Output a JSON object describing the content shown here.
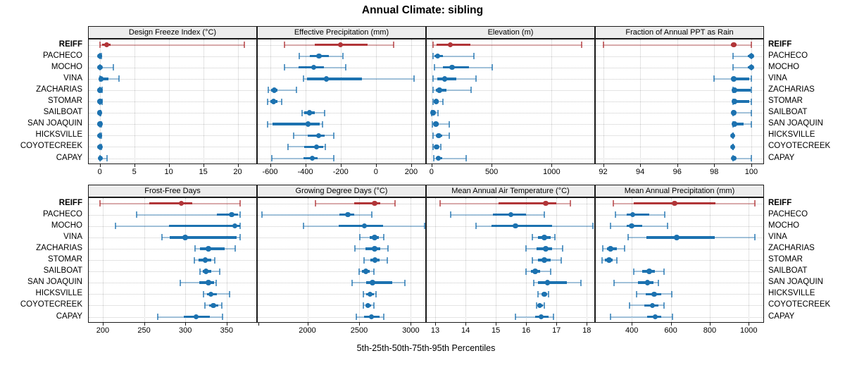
{
  "title": "Annual Climate: sibling",
  "footer": "5th-25th-50th-75th-95th Percentiles",
  "colors": {
    "highlight": "#b13538",
    "normal": "#1c72b0",
    "strip_bg": "#ededed",
    "grid": "#c9c9c9",
    "panel_border": "#1a1a1a"
  },
  "sites": [
    "REIFF",
    "PACHECO",
    "MOCHO",
    "VINA",
    "ZACHARIAS",
    "STOMAR",
    "SAILBOAT",
    "SAN JOAQUIN",
    "HICKSVILLE",
    "COYOTECREEK",
    "CAPAY"
  ],
  "highlight_site": "REIFF",
  "chart_data": [
    {
      "type": "dotplot-percentile",
      "title": "Design Freeze Index (°C)",
      "row": "top",
      "col": 0,
      "xdomain": [
        -1.6,
        22.7
      ],
      "ticks": [
        {
          "v": 0,
          "label": "0"
        },
        {
          "v": 5,
          "label": "5"
        },
        {
          "v": 10,
          "label": "10"
        },
        {
          "v": 15,
          "label": "15"
        },
        {
          "v": 20,
          "label": "20"
        }
      ],
      "percentiles_5_25_50_75_95": [
        [
          0,
          0.35,
          1.0,
          1.6,
          21.0
        ],
        [
          0,
          0,
          0,
          0.05,
          0.2
        ],
        [
          0,
          0,
          0.05,
          0.3,
          2.0
        ],
        [
          0,
          0.05,
          0.2,
          1.3,
          2.8
        ],
        [
          0,
          0,
          0.05,
          0.15,
          0.35
        ],
        [
          0,
          0,
          0.05,
          0.15,
          0.35
        ],
        [
          0,
          0,
          0,
          0.05,
          0.15
        ],
        [
          0,
          0,
          0.05,
          0.1,
          0.25
        ],
        [
          0,
          0,
          0,
          0.05,
          0.2
        ],
        [
          0,
          0,
          0.05,
          0.1,
          0.25
        ],
        [
          0,
          0,
          0.1,
          0.3,
          1.1
        ]
      ]
    },
    {
      "type": "dotplot-percentile",
      "title": "Effective Precipitation (mm)",
      "row": "top",
      "col": 1,
      "xdomain": [
        -670,
        280
      ],
      "ticks": [
        {
          "v": -600,
          "label": "-600"
        },
        {
          "v": -400,
          "label": "-400"
        },
        {
          "v": -200,
          "label": "-200"
        },
        {
          "v": 0,
          "label": "0"
        },
        {
          "v": 200,
          "label": "200"
        }
      ],
      "percentiles_5_25_50_75_95": [
        [
          -520,
          -347,
          -200,
          -47,
          100
        ],
        [
          -433,
          -373,
          -323,
          -267,
          -189
        ],
        [
          -520,
          -440,
          -353,
          -293,
          -173
        ],
        [
          -410,
          -392,
          -280,
          -80,
          215
        ],
        [
          -609,
          -595,
          -577,
          -558,
          -449
        ],
        [
          -613,
          -597,
          -580,
          -558,
          -533
        ],
        [
          -420,
          -408,
          -376,
          -348,
          -292
        ],
        [
          -615,
          -588,
          -385,
          -318,
          -302
        ],
        [
          -468,
          -388,
          -324,
          -290,
          -237
        ],
        [
          -500,
          -405,
          -336,
          -298,
          -288
        ],
        [
          -590,
          -410,
          -360,
          -332,
          -240
        ]
      ]
    },
    {
      "type": "dotplot-percentile",
      "title": "Elevation (m)",
      "row": "top",
      "col": 2,
      "xdomain": [
        -40,
        1355
      ],
      "ticks": [
        {
          "v": 0,
          "label": "0"
        },
        {
          "v": 500,
          "label": "500"
        },
        {
          "v": 1000,
          "label": "1000"
        }
      ],
      "percentiles_5_25_50_75_95": [
        [
          10,
          40,
          155,
          325,
          1250
        ],
        [
          10,
          25,
          50,
          95,
          350
        ],
        [
          25,
          95,
          170,
          310,
          505
        ],
        [
          15,
          45,
          110,
          205,
          370
        ],
        [
          15,
          35,
          65,
          125,
          330
        ],
        [
          10,
          20,
          40,
          60,
          95
        ],
        [
          2,
          5,
          12,
          25,
          55
        ],
        [
          8,
          18,
          35,
          60,
          150
        ],
        [
          15,
          35,
          60,
          90,
          145
        ],
        [
          15,
          25,
          42,
          58,
          78
        ],
        [
          20,
          38,
          58,
          90,
          290
        ]
      ]
    },
    {
      "type": "dotplot-percentile",
      "title": "Fraction of Annual PPT as Rain",
      "row": "top",
      "col": 3,
      "xdomain": [
        91.6,
        100.65
      ],
      "ticks": [
        {
          "v": 92,
          "label": "92"
        },
        {
          "v": 94,
          "label": "94"
        },
        {
          "v": 96,
          "label": "96"
        },
        {
          "v": 98,
          "label": "98"
        },
        {
          "v": 100,
          "label": "100"
        }
      ],
      "percentiles_5_25_50_75_95": [
        [
          92,
          98.9,
          99.05,
          99.2,
          100
        ],
        [
          99,
          99.8,
          100,
          100,
          100
        ],
        [
          99,
          99.8,
          100,
          100,
          100
        ],
        [
          98,
          98.95,
          99.05,
          99.9,
          100
        ],
        [
          99,
          99.05,
          99.1,
          99.95,
          100
        ],
        [
          99,
          99.05,
          99.1,
          99.9,
          100
        ],
        [
          99,
          99,
          99.05,
          99.15,
          100
        ],
        [
          99,
          99.05,
          99.1,
          99.6,
          100
        ],
        [
          99,
          99,
          99,
          99,
          99
        ],
        [
          99,
          99,
          99,
          99,
          99
        ],
        [
          99,
          99,
          99.05,
          99.15,
          100
        ]
      ]
    },
    {
      "type": "dotplot-percentile",
      "title": "Frost-Free Days",
      "row": "bottom",
      "col": 0,
      "xdomain": [
        183,
        386
      ],
      "ticks": [
        {
          "v": 200,
          "label": "200"
        },
        {
          "v": 250,
          "label": "250"
        },
        {
          "v": 300,
          "label": "300"
        },
        {
          "v": 350,
          "label": "350"
        }
      ],
      "percentiles_5_25_50_75_95": [
        [
          197,
          256,
          295,
          308,
          366
        ],
        [
          241,
          338,
          356,
          364,
          366
        ],
        [
          215,
          280,
          360,
          366,
          366
        ],
        [
          272,
          281,
          300,
          362,
          366
        ],
        [
          312,
          318,
          328,
          348,
          360
        ],
        [
          311,
          316,
          324,
          331,
          336
        ],
        [
          318,
          321,
          325,
          331,
          342
        ],
        [
          294,
          317,
          328,
          335,
          337
        ],
        [
          322,
          326,
          331,
          338,
          354
        ],
        [
          324,
          329,
          334,
          340,
          344
        ],
        [
          267,
          298,
          313,
          330,
          345
        ]
      ]
    },
    {
      "type": "dotplot-percentile",
      "title": "Growing Degree Days (°C)",
      "row": "bottom",
      "col": 1,
      "xdomain": [
        1520,
        3140
      ],
      "ticks": [
        {
          "v": 1525,
          "label": ""
        },
        {
          "v": 2000,
          "label": "2000"
        },
        {
          "v": 2500,
          "label": "2500"
        },
        {
          "v": 3000,
          "label": "3000"
        }
      ],
      "percentiles_5_25_50_75_95": [
        [
          2080,
          2450,
          2650,
          2705,
          2850
        ],
        [
          1560,
          2310,
          2390,
          2450,
          2620
        ],
        [
          1960,
          2300,
          2550,
          2730,
          3130
        ],
        [
          2510,
          2600,
          2650,
          2690,
          2740
        ],
        [
          2460,
          2560,
          2650,
          2705,
          2780
        ],
        [
          2550,
          2610,
          2655,
          2700,
          2770
        ],
        [
          2500,
          2530,
          2565,
          2600,
          2645
        ],
        [
          2430,
          2570,
          2630,
          2820,
          2940
        ],
        [
          2540,
          2570,
          2605,
          2640,
          2665
        ],
        [
          2540,
          2560,
          2585,
          2615,
          2640
        ],
        [
          2470,
          2550,
          2620,
          2700,
          2735
        ]
      ]
    },
    {
      "type": "dotplot-percentile",
      "title": "Mean Annual Air Temperature (°C)",
      "row": "bottom",
      "col": 2,
      "xdomain": [
        12.72,
        18.25
      ],
      "ticks": [
        {
          "v": 13,
          "label": "13"
        },
        {
          "v": 14,
          "label": "14"
        },
        {
          "v": 15,
          "label": "15"
        },
        {
          "v": 16,
          "label": "16"
        },
        {
          "v": 17,
          "label": "17"
        },
        {
          "v": 18,
          "label": "18"
        }
      ],
      "percentiles_5_25_50_75_95": [
        [
          13.15,
          15.1,
          16.65,
          17.0,
          17.45
        ],
        [
          13.5,
          14.9,
          15.5,
          16.0,
          16.6
        ],
        [
          14.35,
          14.85,
          15.65,
          16.85,
          18.2
        ],
        [
          16.2,
          16.4,
          16.6,
          16.8,
          16.95
        ],
        [
          16.0,
          16.35,
          16.65,
          16.85,
          17.2
        ],
        [
          16.2,
          16.4,
          16.6,
          16.8,
          17.15
        ],
        [
          16.0,
          16.15,
          16.3,
          16.45,
          16.8
        ],
        [
          16.25,
          16.4,
          16.7,
          17.35,
          17.8
        ],
        [
          16.4,
          16.5,
          16.6,
          16.7,
          16.75
        ],
        [
          16.35,
          16.4,
          16.45,
          16.55,
          16.6
        ],
        [
          15.65,
          16.3,
          16.5,
          16.75,
          16.9
        ]
      ]
    },
    {
      "type": "dotplot-percentile",
      "title": "Mean Annual Precipitation (mm)",
      "row": "bottom",
      "col": 3,
      "xdomain": [
        215,
        1075
      ],
      "ticks": [
        {
          "v": 400,
          "label": "400"
        },
        {
          "v": 600,
          "label": "600"
        },
        {
          "v": 800,
          "label": "800"
        },
        {
          "v": 1000,
          "label": "1000"
        }
      ],
      "percentiles_5_25_50_75_95": [
        [
          305,
          410,
          620,
          830,
          1030
        ],
        [
          315,
          375,
          405,
          490,
          570
        ],
        [
          290,
          375,
          400,
          455,
          585
        ],
        [
          380,
          475,
          630,
          825,
          1030
        ],
        [
          250,
          272,
          290,
          325,
          362
        ],
        [
          248,
          262,
          283,
          303,
          322
        ],
        [
          410,
          455,
          490,
          520,
          565
        ],
        [
          310,
          430,
          480,
          510,
          535
        ],
        [
          425,
          470,
          515,
          550,
          605
        ],
        [
          390,
          465,
          505,
          535,
          565
        ],
        [
          290,
          480,
          520,
          550,
          610
        ]
      ]
    }
  ]
}
